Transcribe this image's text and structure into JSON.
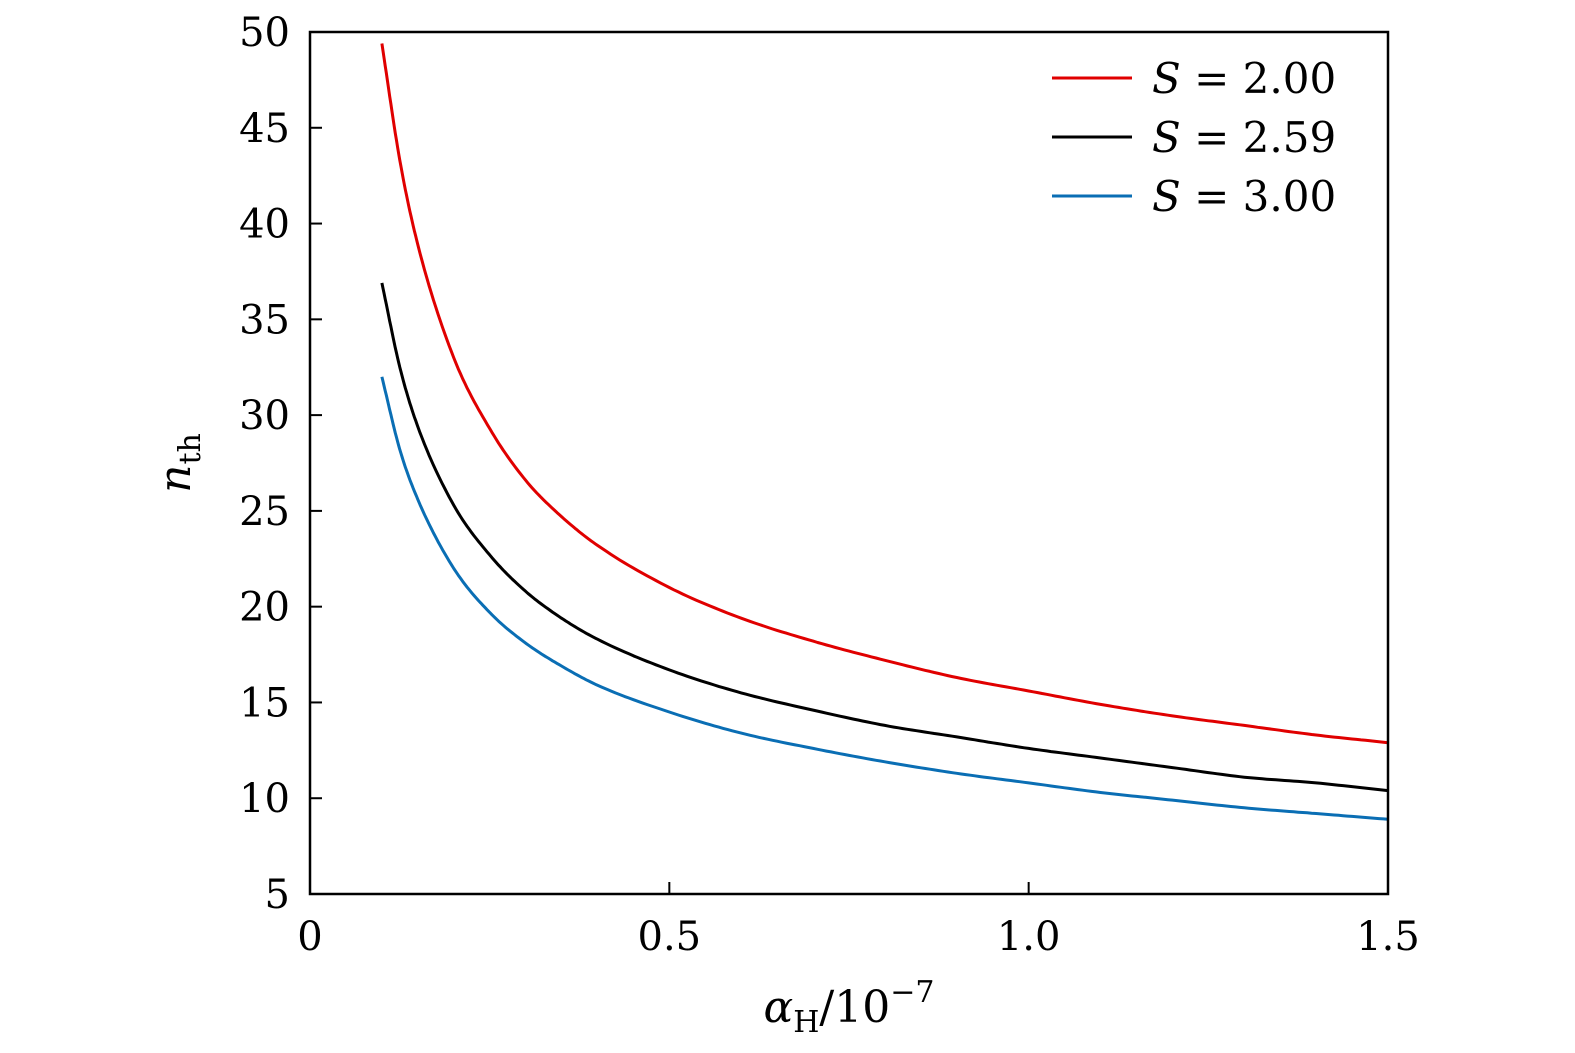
{
  "chart_data": {
    "type": "line",
    "title": "",
    "xlabel": {
      "symbol": "α",
      "subscript": "H",
      "rest": "/10",
      "superscript": "−7"
    },
    "ylabel": {
      "symbol": "n",
      "subscript": "th"
    },
    "xlim": [
      0,
      1.5
    ],
    "ylim": [
      5,
      50
    ],
    "xticks": [
      "0",
      "0.5",
      "1.0",
      "1.5"
    ],
    "yticks": [
      "5",
      "10",
      "15",
      "20",
      "25",
      "30",
      "35",
      "40",
      "45",
      "50"
    ],
    "xtick_values": [
      0,
      0.5,
      1.0,
      1.5
    ],
    "ytick_values": [
      5,
      10,
      15,
      20,
      25,
      30,
      35,
      40,
      45,
      50
    ],
    "grid": false,
    "legend_position": "top-right",
    "series": [
      {
        "name": "S = 2.00",
        "legend": {
          "symbol": "S",
          "rest": " = 2.00"
        },
        "color": "#e00000",
        "x": [
          0.1,
          0.125,
          0.15,
          0.2,
          0.25,
          0.3,
          0.35,
          0.4,
          0.5,
          0.6,
          0.7,
          0.8,
          0.9,
          1.0,
          1.1,
          1.2,
          1.3,
          1.4,
          1.5
        ],
        "y": [
          49.4,
          43.3,
          38.9,
          33.0,
          29.3,
          26.6,
          24.7,
          23.2,
          21.0,
          19.4,
          18.2,
          17.2,
          16.3,
          15.6,
          14.9,
          14.3,
          13.8,
          13.3,
          12.9
        ]
      },
      {
        "name": "S = 2.59",
        "legend": {
          "symbol": "S",
          "rest": " = 2.59"
        },
        "color": "#000000",
        "x": [
          0.1,
          0.125,
          0.15,
          0.2,
          0.25,
          0.3,
          0.35,
          0.4,
          0.5,
          0.6,
          0.7,
          0.8,
          0.9,
          1.0,
          1.1,
          1.2,
          1.3,
          1.4,
          1.5
        ],
        "y": [
          36.9,
          32.5,
          29.4,
          25.3,
          22.7,
          20.8,
          19.4,
          18.3,
          16.7,
          15.5,
          14.6,
          13.8,
          13.2,
          12.6,
          12.1,
          11.6,
          11.1,
          10.8,
          10.4
        ]
      },
      {
        "name": "S = 3.00",
        "legend": {
          "symbol": "S",
          "rest": " = 3.00"
        },
        "color": "#0a6eb4",
        "x": [
          0.1,
          0.125,
          0.15,
          0.2,
          0.25,
          0.3,
          0.35,
          0.4,
          0.5,
          0.6,
          0.7,
          0.8,
          0.9,
          1.0,
          1.1,
          1.2,
          1.3,
          1.4,
          1.5
        ],
        "y": [
          32.0,
          28.2,
          25.6,
          22.0,
          19.7,
          18.1,
          16.9,
          15.9,
          14.5,
          13.4,
          12.6,
          11.9,
          11.3,
          10.8,
          10.3,
          9.9,
          9.5,
          9.2,
          8.9
        ]
      }
    ]
  }
}
